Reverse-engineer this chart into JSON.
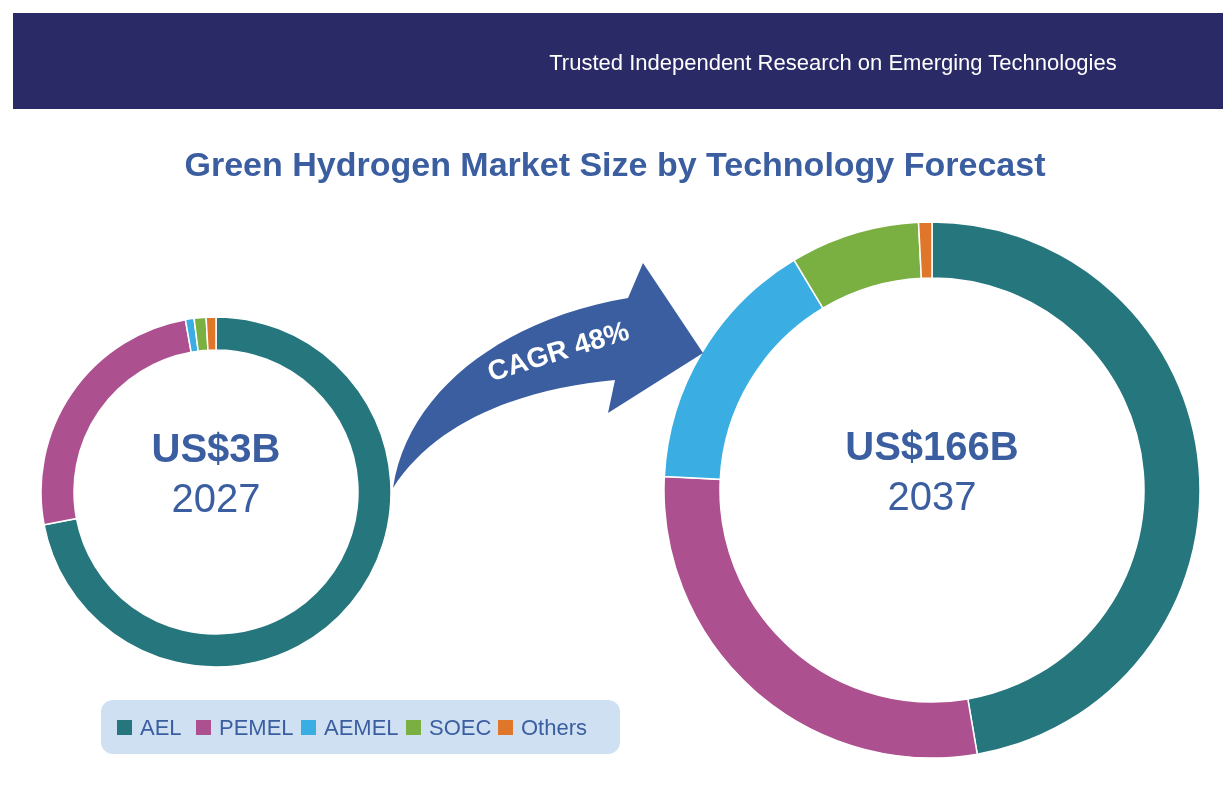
{
  "chart_data": {
    "type": "donut",
    "title": "Green Hydrogen Market Size by Technology Forecast",
    "subtitle": "Trusted Independent Research on Emerging Technologies",
    "categories": [
      "AEL",
      "PEMEL",
      "AEMEL",
      "SOEC",
      "Others"
    ],
    "colors": [
      "#26767e",
      "#ad508f",
      "#3aaee2",
      "#7aaf42",
      "#e0762a"
    ],
    "series": [
      {
        "values": [
          72,
          25.2,
          0.8,
          1.1,
          0.9
        ]
      },
      {
        "values": [
          47.3,
          28.5,
          15.6,
          7.8,
          0.8
        ]
      }
    ],
    "annotations": [
      "US$3B",
      "2027",
      "US$166B",
      "2037",
      "CAGR 48%"
    ],
    "legend": "bottom left"
  }
}
